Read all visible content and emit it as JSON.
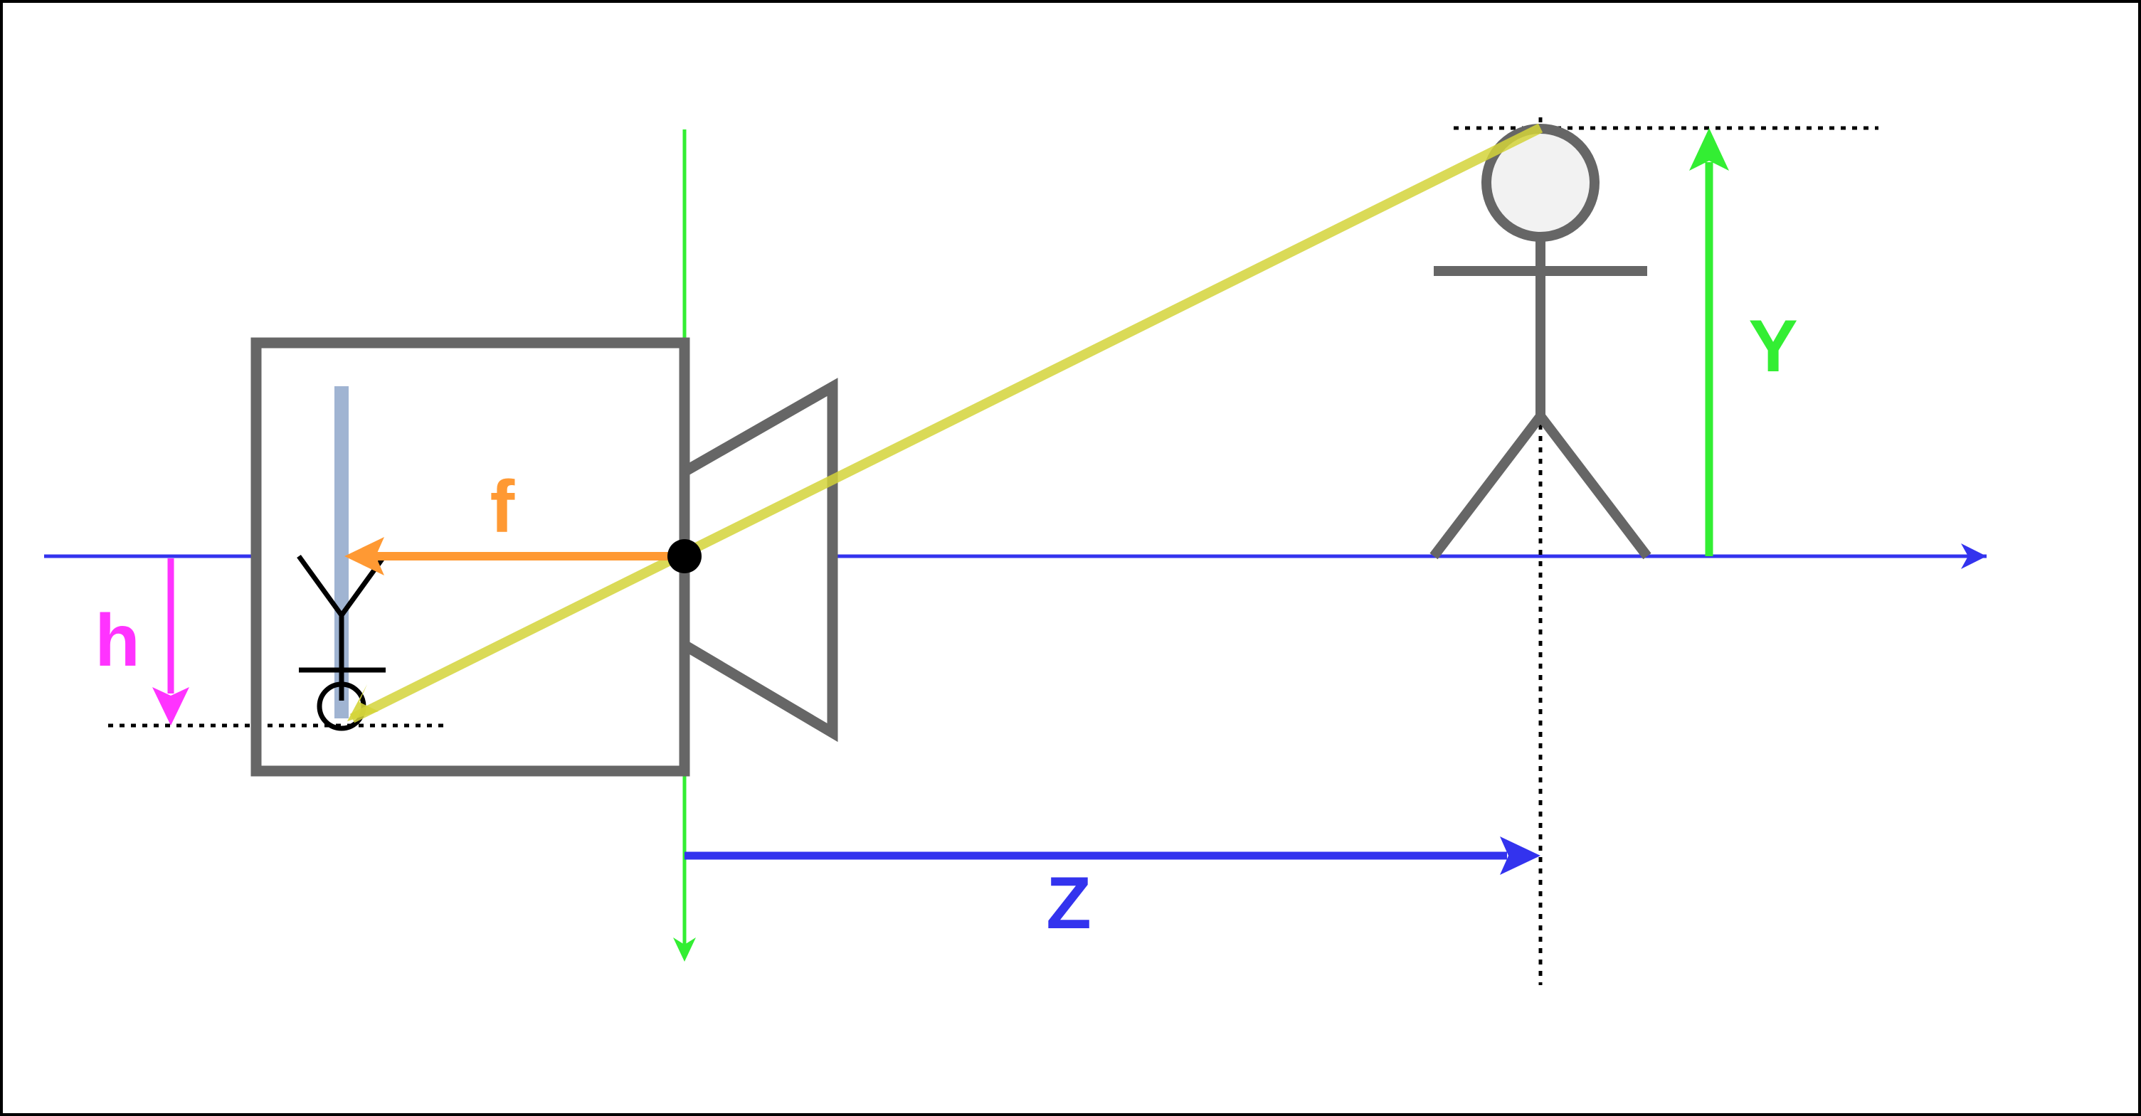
{
  "labels": {
    "focal_length": "f",
    "image_height": "h",
    "object_height": "Y",
    "object_distance": "Z"
  },
  "colors": {
    "frame": "#000000",
    "camera_body": "#666666",
    "optical_axis": "#3333ee",
    "vertical_axis": "#33ee33",
    "focal_length": "#ff9933",
    "image_height": "#ff33ff",
    "object_height": "#33ee33",
    "object_distance": "#3333ee",
    "projection_ray": "#d4d43a",
    "image_sensor": "#a0b4d2",
    "pinhole": "#000000",
    "person_head_fill": "#f2f2f2"
  },
  "icons": {
    "camera": "camera-icon",
    "person": "person-icon",
    "inverted_image": "inverted-person-icon",
    "pinhole": "pinhole-icon"
  }
}
